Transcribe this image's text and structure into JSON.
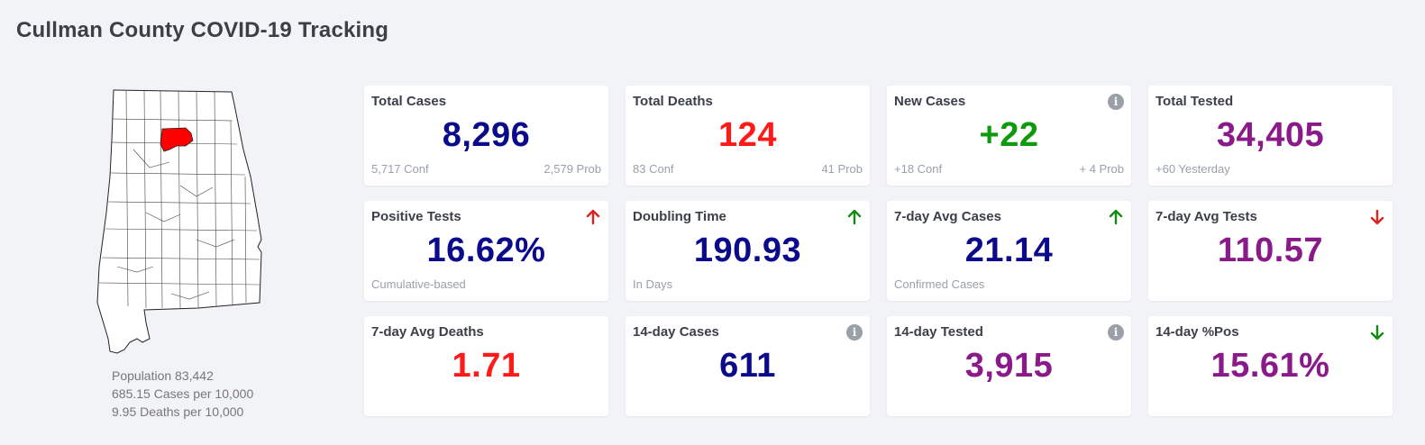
{
  "page": {
    "title": "Cullman County COVID-19 Tracking"
  },
  "colors": {
    "blue": "#0a0a8a",
    "red": "#ff1a1a",
    "green": "#0d9b0d",
    "purple": "#8a1a8a",
    "arrow_red": "#e02020",
    "arrow_green": "#138a13",
    "highlight_county": "#ff0000"
  },
  "map": {
    "state": "Alabama",
    "highlighted_county": "Cullman"
  },
  "stats": {
    "population": "Population 83,442",
    "cases_per_10k": "685.15 Cases per 10,000",
    "deaths_per_10k": "9.95 Deaths per 10,000"
  },
  "cards": [
    {
      "title": "Total Cases",
      "value": "8,296",
      "color": "#0a0a8a",
      "sub_left": "5,717 Conf",
      "sub_right": "2,579 Prob",
      "icon": ""
    },
    {
      "title": "Total Deaths",
      "value": "124",
      "color": "#ff1a1a",
      "sub_left": "83 Conf",
      "sub_right": "41 Prob",
      "icon": ""
    },
    {
      "title": "New Cases",
      "value": "+22",
      "color": "#0d9b0d",
      "sub_left": "+18 Conf",
      "sub_right": "+ 4 Prob",
      "icon": "info-icon"
    },
    {
      "title": "Total Tested",
      "value": "34,405",
      "color": "#8a1a8a",
      "sub_left": "+60 Yesterday",
      "sub_right": "",
      "icon": ""
    },
    {
      "title": "Positive Tests",
      "value": "16.62%",
      "color": "#0a0a8a",
      "sub_left": "Cumulative-based",
      "sub_right": "",
      "icon": "arrow-up-red-icon"
    },
    {
      "title": "Doubling Time",
      "value": "190.93",
      "color": "#0a0a8a",
      "sub_left": "In Days",
      "sub_right": "",
      "icon": "arrow-up-green-icon"
    },
    {
      "title": "7-day Avg Cases",
      "value": "21.14",
      "color": "#0a0a8a",
      "sub_left": "Confirmed Cases",
      "sub_right": "",
      "icon": "arrow-up-green-icon"
    },
    {
      "title": "7-day Avg Tests",
      "value": "110.57",
      "color": "#8a1a8a",
      "sub_left": "",
      "sub_right": "",
      "icon": "arrow-down-red-icon"
    },
    {
      "title": "7-day Avg Deaths",
      "value": "1.71",
      "color": "#ff1a1a",
      "sub_left": "",
      "sub_right": "",
      "icon": ""
    },
    {
      "title": "14-day Cases",
      "value": "611",
      "color": "#0a0a8a",
      "sub_left": "",
      "sub_right": "",
      "icon": "info-icon"
    },
    {
      "title": "14-day Tested",
      "value": "3,915",
      "color": "#8a1a8a",
      "sub_left": "",
      "sub_right": "",
      "icon": "info-icon"
    },
    {
      "title": "14-day %Pos",
      "value": "15.61%",
      "color": "#8a1a8a",
      "sub_left": "",
      "sub_right": "",
      "icon": "arrow-down-green-icon"
    }
  ]
}
